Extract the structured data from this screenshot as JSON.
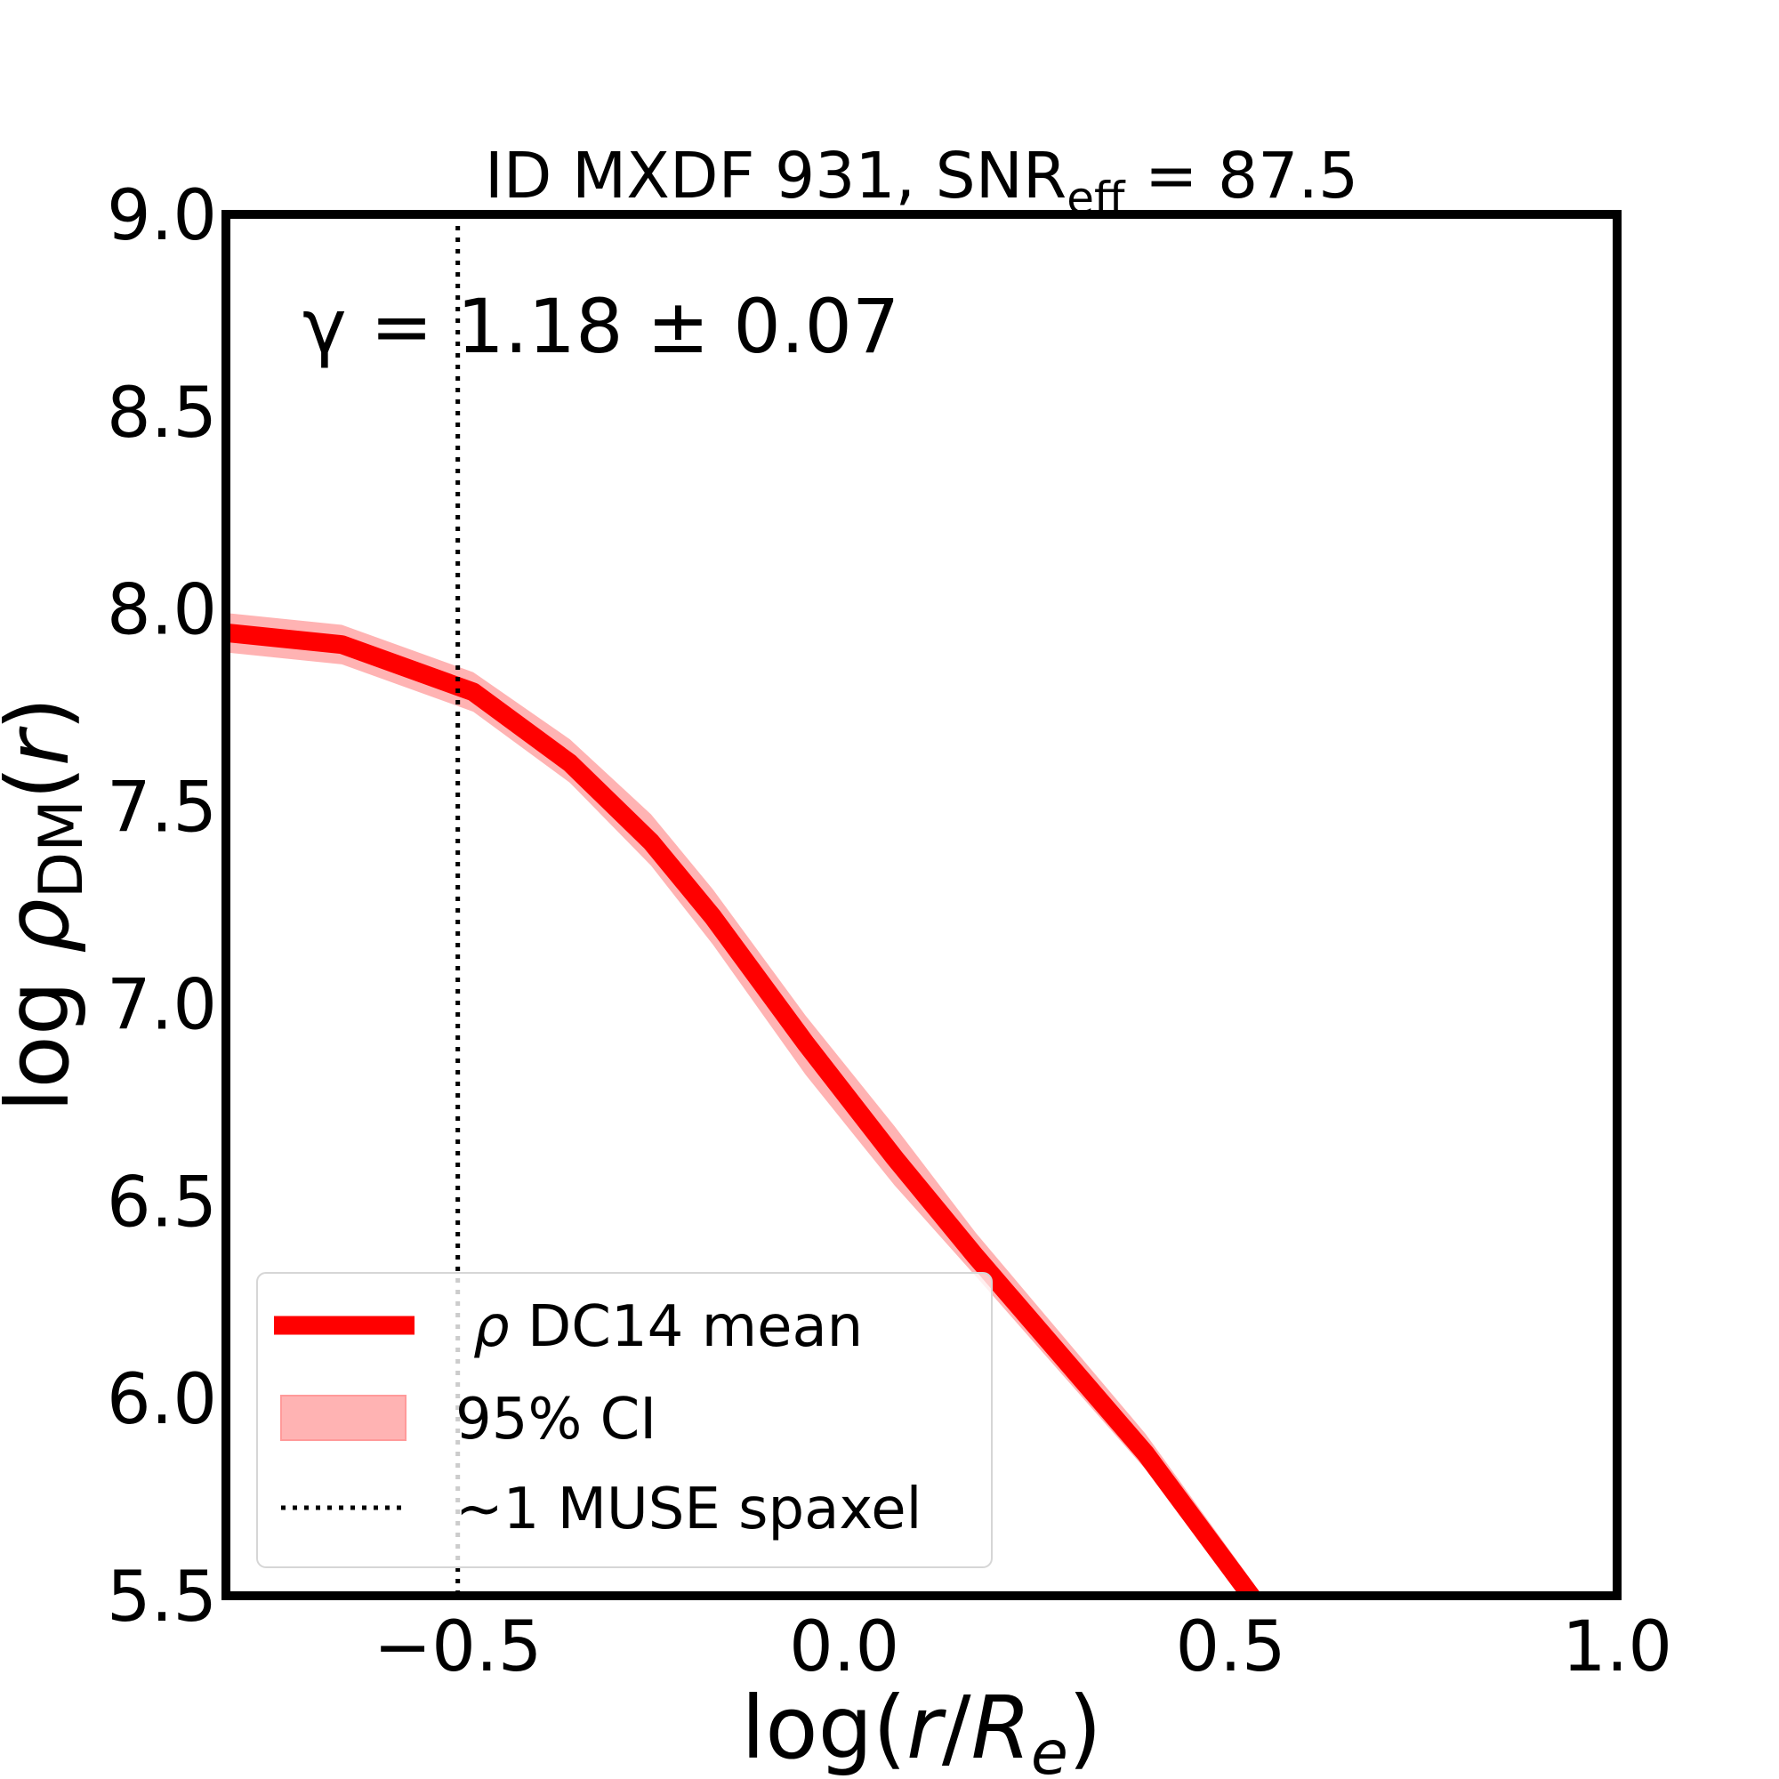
{
  "chart_data": {
    "type": "line",
    "title": {
      "main": "ID MXDF 931, SNR",
      "sub": "eff",
      "rest": " = 87.5"
    },
    "annotation": "γ = 1.18 ± 0.07",
    "xlabel": {
      "pre": "log(",
      "r": "r",
      "slash": "/",
      "R": "R",
      "sub": "e",
      "post": ")"
    },
    "ylabel": {
      "pre": "log ",
      "rho": "ρ",
      "sub": "DM",
      "post": "(",
      "r": "r",
      "close": ")"
    },
    "xlim": [
      -0.8,
      1.0
    ],
    "ylim": [
      5.5,
      9.0
    ],
    "xticks": [
      {
        "v": -0.5,
        "label": "−0.5"
      },
      {
        "v": 0.0,
        "label": "0.0"
      },
      {
        "v": 0.5,
        "label": "0.5"
      },
      {
        "v": 1.0,
        "label": "1.0"
      }
    ],
    "yticks": [
      {
        "v": 5.5,
        "label": "5.5"
      },
      {
        "v": 6.0,
        "label": "6.0"
      },
      {
        "v": 6.5,
        "label": "6.5"
      },
      {
        "v": 7.0,
        "label": "7.0"
      },
      {
        "v": 7.5,
        "label": "7.5"
      },
      {
        "v": 8.0,
        "label": "8.0"
      },
      {
        "v": 8.5,
        "label": "8.5"
      },
      {
        "v": 9.0,
        "label": "9.0"
      }
    ],
    "grid": false,
    "series": [
      {
        "name": "ρ DC14 mean",
        "color": "#ff0000",
        "x": [
          -0.8,
          -0.65,
          -0.48,
          -0.355,
          -0.25,
          -0.17,
          -0.05,
          0.065,
          0.17,
          0.39,
          0.53
        ],
        "y": [
          7.94,
          7.91,
          7.79,
          7.61,
          7.41,
          7.22,
          6.9,
          6.61,
          6.36,
          5.86,
          5.49
        ],
        "ci_lower": [
          7.89,
          7.86,
          7.74,
          7.56,
          7.35,
          7.15,
          6.82,
          6.54,
          6.31,
          5.82,
          5.45
        ],
        "ci_upper": [
          7.99,
          7.96,
          7.84,
          7.67,
          7.48,
          7.29,
          6.97,
          6.69,
          6.42,
          5.91,
          5.53
        ]
      }
    ],
    "ci_label": "95% CI",
    "ci_color": "#ffb3b3",
    "vline": {
      "x": -0.5,
      "label": "~1 MUSE spaxel",
      "style": "dotted",
      "color": "#000000"
    },
    "legend": {
      "placement": "lower-left",
      "rho": "ρ",
      "mean_label": " DC14 mean"
    }
  }
}
